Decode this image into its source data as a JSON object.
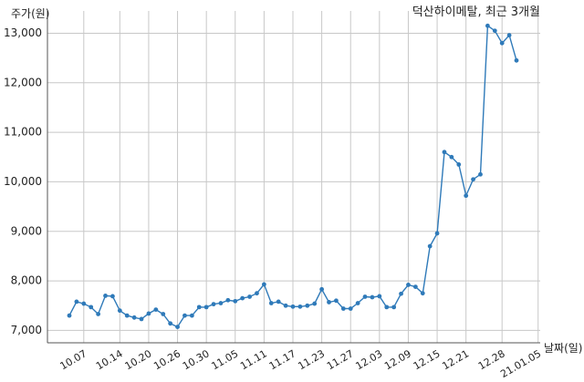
{
  "chart_data": {
    "type": "line",
    "title": "덕산하이메탈, 최근 3개월",
    "xlabel": "날짜(일)",
    "ylabel": "주가(원)",
    "ylim": [
      6750,
      13450
    ],
    "y_ticks": [
      7000,
      8000,
      9000,
      10000,
      11000,
      12000,
      13000
    ],
    "y_tick_labels": [
      "7,000",
      "8,000",
      "9,000",
      "10,000",
      "11,000",
      "12,000",
      "13,000"
    ],
    "x_tick_labels": [
      "10.07",
      "10.14",
      "10.20",
      "10.26",
      "10.30",
      "11.05",
      "11.11",
      "11.17",
      "11.23",
      "11.27",
      "12.03",
      "12.09",
      "12.15",
      "12.21",
      "12.28",
      "21.01.05"
    ],
    "x_tick_indices": [
      2,
      7,
      11,
      15,
      19,
      23,
      27,
      31,
      35,
      39,
      43,
      47,
      51,
      55,
      60,
      65
    ],
    "grid": true,
    "color": "#2f7ab9",
    "series": [
      {
        "values": [
          7300,
          7580,
          7540,
          7470,
          7330,
          7700,
          7690,
          7400,
          7300,
          7260,
          7230,
          7340,
          7420,
          7330,
          7140,
          7070,
          7300,
          7300,
          7470,
          7470,
          7530,
          7550,
          7610,
          7590,
          7650,
          7680,
          7750,
          7930,
          7550,
          7580,
          7500,
          7480,
          7480,
          7500,
          7540,
          7830,
          7570,
          7600,
          7440,
          7440,
          7550,
          7680,
          7670,
          7690,
          7470,
          7470,
          7740,
          7920,
          7880,
          7750,
          8700,
          8960,
          10600,
          10500,
          10350,
          9720,
          10050,
          10150,
          13150,
          13050,
          12800,
          12960,
          12450
        ]
      }
    ]
  }
}
